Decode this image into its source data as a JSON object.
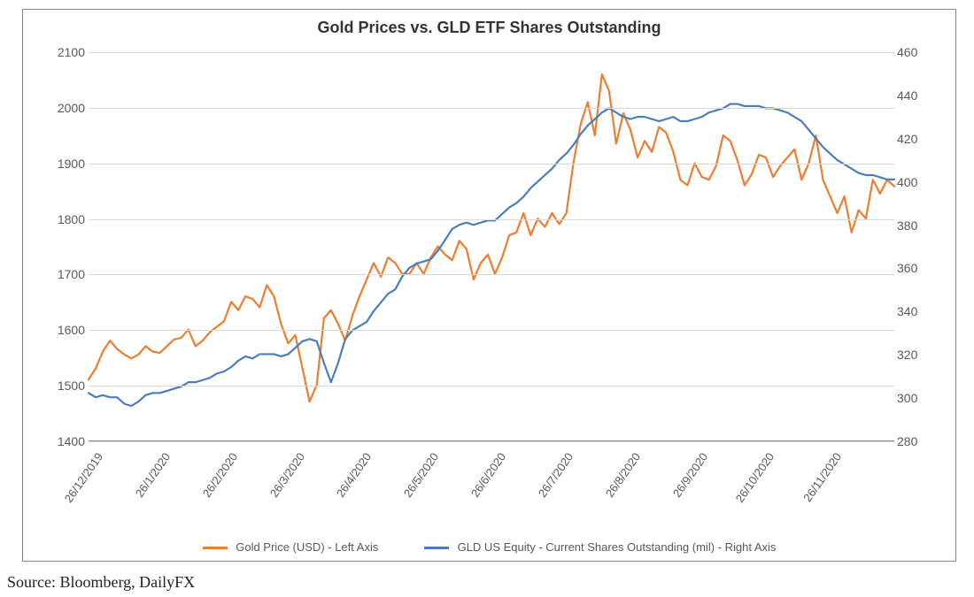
{
  "title": "Gold Prices vs. GLD ETF Shares Outstanding",
  "source": "Source: Bloomberg, DailyFX",
  "chart": {
    "type": "line",
    "background_color": "#ffffff",
    "grid_color": "#d9d9d9",
    "border_color": "#888888",
    "title_fontsize": 18,
    "label_fontsize": 14,
    "x_labels": [
      "26/12/2019",
      "26/1/2020",
      "26/2/2020",
      "26/3/2020",
      "26/4/2020",
      "26/5/2020",
      "26/6/2020",
      "26/7/2020",
      "26/8/2020",
      "26/9/2020",
      "26/10/2020",
      "26/11/2020"
    ],
    "y_left": {
      "min": 1400,
      "max": 2100,
      "ticks": [
        1400,
        1500,
        1600,
        1700,
        1800,
        1900,
        2000,
        2100
      ]
    },
    "y_right": {
      "min": 280,
      "max": 460,
      "ticks": [
        280,
        300,
        320,
        340,
        360,
        380,
        400,
        420,
        440,
        460
      ]
    },
    "series": [
      {
        "name": "Gold Price (USD) - Left Axis",
        "axis": "left",
        "color": "#ed7d31",
        "line_width": 2.2,
        "data": [
          1510,
          1530,
          1560,
          1580,
          1565,
          1555,
          1548,
          1555,
          1570,
          1560,
          1558,
          1570,
          1582,
          1585,
          1600,
          1570,
          1580,
          1595,
          1605,
          1615,
          1650,
          1635,
          1660,
          1655,
          1640,
          1680,
          1660,
          1610,
          1575,
          1590,
          1530,
          1470,
          1500,
          1620,
          1635,
          1610,
          1580,
          1625,
          1660,
          1690,
          1720,
          1695,
          1730,
          1720,
          1700,
          1700,
          1720,
          1700,
          1730,
          1750,
          1735,
          1725,
          1760,
          1745,
          1690,
          1720,
          1735,
          1700,
          1730,
          1770,
          1775,
          1810,
          1770,
          1800,
          1785,
          1810,
          1790,
          1810,
          1900,
          1970,
          2010,
          1950,
          2060,
          2030,
          1935,
          1990,
          1960,
          1910,
          1940,
          1920,
          1965,
          1955,
          1920,
          1870,
          1860,
          1900,
          1875,
          1870,
          1895,
          1950,
          1940,
          1905,
          1860,
          1880,
          1915,
          1910,
          1875,
          1895,
          1910,
          1925,
          1870,
          1900,
          1950,
          1870,
          1840,
          1810,
          1840,
          1775,
          1815,
          1800,
          1870,
          1845,
          1870,
          1858
        ]
      },
      {
        "name": "GLD US Equity - Current Shares Outstanding (mil) - Right Axis",
        "axis": "right",
        "color": "#4a7ebb",
        "line_width": 2.2,
        "data": [
          302,
          300,
          301,
          300,
          300,
          297,
          296,
          298,
          301,
          302,
          302,
          303,
          304,
          305,
          307,
          307,
          308,
          309,
          311,
          312,
          314,
          317,
          319,
          318,
          320,
          320,
          320,
          319,
          320,
          323,
          326,
          327,
          326,
          316,
          307,
          316,
          327,
          331,
          333,
          335,
          340,
          344,
          348,
          350,
          356,
          360,
          362,
          363,
          364,
          368,
          373,
          378,
          380,
          381,
          380,
          381,
          382,
          382,
          385,
          388,
          390,
          393,
          397,
          400,
          403,
          406,
          410,
          413,
          417,
          422,
          426,
          429,
          432,
          434,
          432,
          430,
          429,
          430,
          430,
          429,
          428,
          429,
          430,
          428,
          428,
          429,
          430,
          432,
          433,
          434,
          436,
          436,
          435,
          435,
          435,
          434,
          434,
          433,
          432,
          430,
          428,
          424,
          420,
          416,
          413,
          410,
          408,
          406,
          404,
          403,
          403,
          402,
          401,
          401
        ]
      }
    ],
    "legend": {
      "items": [
        {
          "label": "Gold Price (USD) - Left Axis",
          "color": "#ed7d31"
        },
        {
          "label": "GLD US Equity - Current Shares Outstanding (mil) - Right Axis",
          "color": "#4a7ebb"
        }
      ]
    }
  }
}
